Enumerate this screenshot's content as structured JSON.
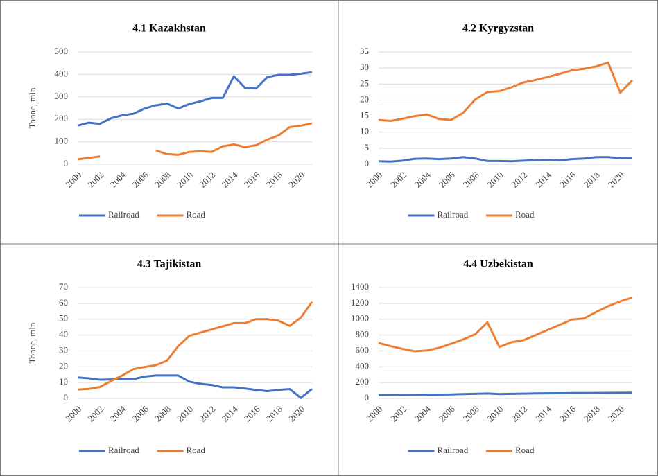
{
  "chart_data": [
    {
      "type": "line",
      "title": "4.1 Kazakhstan",
      "y_label": "Tonne, mln",
      "x": [
        2000,
        2001,
        2002,
        2003,
        2004,
        2005,
        2006,
        2007,
        2008,
        2009,
        2010,
        2011,
        2012,
        2013,
        2014,
        2015,
        2016,
        2017,
        2018,
        2019,
        2020,
        2021
      ],
      "xlim": [
        2000,
        2021
      ],
      "xticks": [
        2000,
        2002,
        2004,
        2006,
        2008,
        2010,
        2012,
        2014,
        2016,
        2018,
        2020
      ],
      "ylim": [
        0,
        500
      ],
      "yticks": [
        0,
        100,
        200,
        300,
        400,
        500
      ],
      "grid": true,
      "legend": "bottom",
      "series": [
        {
          "name": "Railroad",
          "color": "#4472c4",
          "values": [
            172,
            185,
            180,
            205,
            218,
            225,
            248,
            262,
            270,
            248,
            268,
            280,
            295,
            295,
            392,
            340,
            338,
            388,
            398,
            398,
            403,
            410
          ]
        },
        {
          "name": "Road",
          "color": "#ed7d31",
          "values": [
            22,
            28,
            35,
            null,
            null,
            null,
            null,
            62,
            45,
            42,
            55,
            58,
            55,
            80,
            88,
            77,
            85,
            110,
            128,
            165,
            172,
            182
          ]
        }
      ]
    },
    {
      "type": "line",
      "title": "4.2 Kyrgyzstan",
      "x": [
        2000,
        2001,
        2002,
        2003,
        2004,
        2005,
        2006,
        2007,
        2008,
        2009,
        2010,
        2011,
        2012,
        2013,
        2014,
        2015,
        2016,
        2017,
        2018,
        2019,
        2020,
        2021
      ],
      "xlim": [
        2000,
        2021
      ],
      "xticks": [
        2000,
        2002,
        2004,
        2006,
        2008,
        2010,
        2012,
        2014,
        2016,
        2018,
        2020
      ],
      "ylim": [
        0,
        35
      ],
      "yticks": [
        0,
        5,
        10,
        15,
        20,
        25,
        30,
        35
      ],
      "grid": true,
      "legend": "bottom",
      "series": [
        {
          "name": "Railroad",
          "color": "#4472c4",
          "values": [
            0.9,
            0.8,
            1.1,
            1.7,
            1.8,
            1.6,
            1.8,
            2.2,
            1.8,
            1.0,
            1.0,
            0.9,
            1.1,
            1.3,
            1.4,
            1.2,
            1.6,
            1.8,
            2.2,
            2.2,
            1.9,
            2.0
          ]
        },
        {
          "name": "Road",
          "color": "#ed7d31",
          "values": [
            13.8,
            13.5,
            14.2,
            15,
            15.5,
            14.1,
            13.8,
            16,
            20.2,
            22.5,
            22.8,
            24,
            25.5,
            26.3,
            27.2,
            28.2,
            29.3,
            29.8,
            30.5,
            31.7,
            22.3,
            26.2
          ]
        }
      ]
    },
    {
      "type": "line",
      "title": "4.3 Tajikistan",
      "y_label": "Tonne, mln",
      "x": [
        2000,
        2001,
        2002,
        2003,
        2004,
        2005,
        2006,
        2007,
        2008,
        2009,
        2010,
        2011,
        2012,
        2013,
        2014,
        2015,
        2016,
        2017,
        2018,
        2019,
        2020,
        2021
      ],
      "xlim": [
        2000,
        2021
      ],
      "xticks": [
        2000,
        2002,
        2004,
        2006,
        2008,
        2010,
        2012,
        2014,
        2016,
        2018,
        2020
      ],
      "ylim": [
        0,
        70
      ],
      "yticks": [
        0,
        10,
        20,
        30,
        40,
        50,
        60,
        70
      ],
      "grid": true,
      "legend": "bottom",
      "series": [
        {
          "name": "Railroad",
          "color": "#4472c4",
          "values": [
            13.2,
            12.7,
            11.8,
            12,
            12.2,
            12.2,
            13.8,
            14.5,
            14.5,
            14.5,
            10.6,
            9.2,
            8.5,
            7,
            7,
            6.2,
            5.4,
            4.6,
            5.4,
            5.9,
            0.3,
            6
          ]
        },
        {
          "name": "Road",
          "color": "#ed7d31",
          "values": [
            5.6,
            6,
            7.2,
            11,
            14.5,
            18.5,
            19.8,
            21,
            23.8,
            33,
            39.5,
            41.5,
            43.5,
            45.5,
            47.5,
            47.5,
            50,
            50,
            49,
            45.8,
            51,
            61
          ]
        }
      ]
    },
    {
      "type": "line",
      "title": "4.4 Uzbekistan",
      "x": [
        2000,
        2001,
        2002,
        2003,
        2004,
        2005,
        2006,
        2007,
        2008,
        2009,
        2010,
        2011,
        2012,
        2013,
        2014,
        2015,
        2016,
        2017,
        2018,
        2019,
        2020,
        2021
      ],
      "xlim": [
        2000,
        2021
      ],
      "xticks": [
        2000,
        2002,
        2004,
        2006,
        2008,
        2010,
        2012,
        2014,
        2016,
        2018,
        2020
      ],
      "ylim": [
        0,
        1400
      ],
      "yticks": [
        0,
        200,
        400,
        600,
        800,
        1000,
        1200,
        1400
      ],
      "grid": true,
      "legend": "bottom",
      "series": [
        {
          "name": "Railroad",
          "color": "#4472c4",
          "values": [
            40,
            42,
            44,
            45,
            46,
            48,
            50,
            55,
            58,
            62,
            55,
            58,
            60,
            63,
            65,
            66,
            67,
            68,
            69,
            70,
            71,
            72
          ]
        },
        {
          "name": "Road",
          "color": "#ed7d31",
          "values": [
            700,
            660,
            625,
            595,
            605,
            640,
            690,
            745,
            810,
            960,
            650,
            710,
            735,
            800,
            865,
            930,
            995,
            1010,
            1090,
            1165,
            1225,
            1275
          ]
        }
      ]
    }
  ]
}
